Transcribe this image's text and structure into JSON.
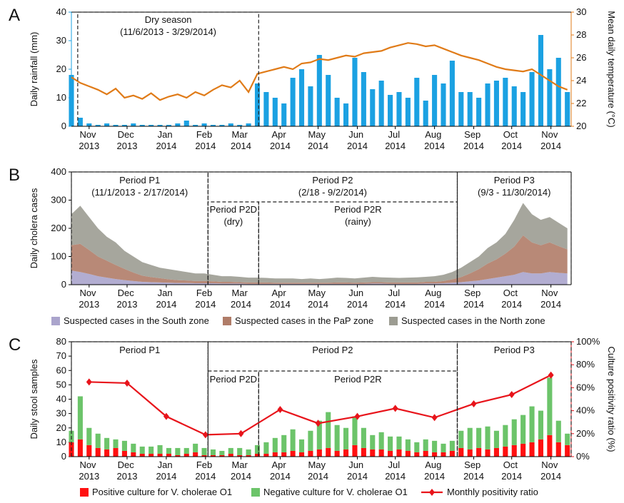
{
  "chart_data": [
    {
      "type": "bar_line",
      "panel": "A",
      "ylabel": "Daily rainfall (mm)",
      "y_axis_color": "#1ba1e2",
      "y2label": "Mean daily temperature (°C)",
      "y2_axis_color": "#e07b18",
      "xlim": [
        0,
        395
      ],
      "ylim": [
        0,
        40
      ],
      "yticks": [
        0,
        10,
        20,
        30,
        40
      ],
      "y2lim": [
        20,
        30
      ],
      "y2ticks": [
        20,
        22,
        24,
        26,
        28,
        30
      ],
      "xticks": [
        {
          "value": 14,
          "label": "Nov 2013"
        },
        {
          "value": 44,
          "label": "Dec 2013"
        },
        {
          "value": 75,
          "label": "Jan 2014"
        },
        {
          "value": 106,
          "label": "Feb 2014"
        },
        {
          "value": 134,
          "label": "Mar 2014"
        },
        {
          "value": 165,
          "label": "Apr 2014"
        },
        {
          "value": 195,
          "label": "May 2014"
        },
        {
          "value": 226,
          "label": "Jun 2014"
        },
        {
          "value": 256,
          "label": "Jul 2014"
        },
        {
          "value": 287,
          "label": "Aug 2014"
        },
        {
          "value": 318,
          "label": "Sep 2014"
        },
        {
          "value": 348,
          "label": "Oct 2014"
        },
        {
          "value": 379,
          "label": "Nov 2014"
        }
      ],
      "x": [
        0,
        7,
        14,
        21,
        28,
        35,
        42,
        49,
        56,
        63,
        70,
        77,
        84,
        91,
        98,
        105,
        112,
        119,
        126,
        133,
        140,
        147,
        154,
        161,
        168,
        175,
        182,
        189,
        196,
        203,
        210,
        217,
        224,
        231,
        238,
        245,
        252,
        259,
        266,
        273,
        280,
        287,
        294,
        301,
        308,
        315,
        322,
        329,
        336,
        343,
        350,
        357,
        364,
        371,
        378,
        385,
        392
      ],
      "series": [
        {
          "name": "Daily rainfall",
          "color": "#1ba1e2",
          "values": [
            18,
            3,
            1,
            0.5,
            1,
            0.5,
            0.5,
            1,
            0.5,
            0.5,
            0.5,
            0.5,
            1,
            2,
            0.5,
            1,
            0.5,
            0.5,
            1,
            0.5,
            1,
            15,
            12,
            10,
            8,
            17,
            20,
            14,
            25,
            18,
            10,
            8,
            24,
            19,
            13,
            16,
            11,
            12,
            10,
            17,
            9,
            18,
            15,
            23,
            12,
            12,
            10,
            15,
            16,
            17,
            14,
            12,
            19,
            32,
            20,
            24,
            12
          ]
        },
        {
          "name": "Mean daily temperature",
          "color": "#e07b18",
          "axis": "y2",
          "values": [
            24.3,
            23.8,
            23.5,
            23.2,
            22.8,
            23.3,
            22.5,
            22.7,
            22.4,
            22.9,
            22.3,
            22.6,
            22.8,
            22.5,
            23.0,
            22.7,
            23.2,
            23.6,
            23.4,
            24.0,
            23.0,
            24.6,
            24.8,
            25.0,
            25.2,
            25.0,
            25.5,
            25.6,
            25.9,
            25.8,
            26.0,
            26.2,
            26.1,
            26.4,
            26.5,
            26.6,
            26.9,
            27.1,
            27.3,
            27.2,
            27.0,
            27.1,
            26.8,
            26.5,
            26.2,
            26.0,
            25.8,
            25.5,
            25.2,
            25.0,
            24.9,
            24.8,
            25.0,
            24.5,
            24.0,
            23.5,
            23.2
          ]
        }
      ],
      "annotations": [
        {
          "lines": [
            "Dry season",
            "(11/6/2013 - 3/29/2014)"
          ]
        }
      ]
    },
    {
      "type": "area",
      "panel": "B",
      "ylabel": "Daily cholera cases",
      "y_axis_color": "#000000",
      "xlim": [
        0,
        395
      ],
      "ylim": [
        0,
        400
      ],
      "yticks": [
        0,
        100,
        200,
        300,
        400
      ],
      "xticks": [
        {
          "value": 14,
          "label": "Nov 2013"
        },
        {
          "value": 44,
          "label": "Dec 2013"
        },
        {
          "value": 75,
          "label": "Jan 2014"
        },
        {
          "value": 106,
          "label": "Feb 2014"
        },
        {
          "value": 134,
          "label": "Mar 2014"
        },
        {
          "value": 165,
          "label": "Apr 2014"
        },
        {
          "value": 195,
          "label": "May 2014"
        },
        {
          "value": 226,
          "label": "Jun 2014"
        },
        {
          "value": 256,
          "label": "Jul 2014"
        },
        {
          "value": 287,
          "label": "Aug 2014"
        },
        {
          "value": 318,
          "label": "Sep 2014"
        },
        {
          "value": 348,
          "label": "Oct 2014"
        },
        {
          "value": 379,
          "label": "Nov 2014"
        }
      ],
      "x": [
        0,
        7,
        14,
        21,
        28,
        35,
        42,
        49,
        56,
        63,
        70,
        77,
        84,
        91,
        98,
        105,
        112,
        119,
        126,
        133,
        140,
        147,
        154,
        161,
        168,
        175,
        182,
        189,
        196,
        203,
        210,
        217,
        224,
        231,
        238,
        245,
        252,
        259,
        266,
        273,
        280,
        287,
        294,
        301,
        308,
        315,
        322,
        329,
        336,
        343,
        350,
        357,
        364,
        371,
        378,
        385,
        392
      ],
      "series": [
        {
          "name": "Suspected cases in the South zone",
          "color": "#aaa4cc",
          "values": [
            50,
            45,
            38,
            30,
            25,
            20,
            16,
            13,
            10,
            9,
            8,
            7,
            6,
            6,
            5,
            5,
            5,
            4,
            4,
            4,
            3,
            3,
            3,
            3,
            3,
            3,
            3,
            3,
            3,
            3,
            3,
            3,
            3,
            3,
            4,
            4,
            3,
            3,
            3,
            3,
            4,
            4,
            5,
            7,
            9,
            12,
            15,
            20,
            25,
            30,
            35,
            45,
            40,
            40,
            45,
            42,
            40
          ]
        },
        {
          "name": "Suspected cases in the PaP zone",
          "color": "#b07c68",
          "values": [
            90,
            100,
            85,
            70,
            60,
            50,
            40,
            30,
            22,
            18,
            15,
            12,
            10,
            9,
            8,
            8,
            7,
            6,
            6,
            5,
            5,
            5,
            5,
            4,
            4,
            4,
            4,
            4,
            4,
            4,
            5,
            5,
            4,
            5,
            5,
            5,
            5,
            5,
            5,
            5,
            6,
            6,
            8,
            12,
            18,
            28,
            40,
            55,
            65,
            80,
            100,
            130,
            110,
            100,
            105,
            95,
            85
          ]
        },
        {
          "name": "Suspected cases in the North zone",
          "color": "#9c9c92",
          "values": [
            110,
            135,
            117,
            100,
            85,
            80,
            64,
            57,
            48,
            43,
            37,
            36,
            34,
            30,
            27,
            27,
            23,
            20,
            20,
            19,
            17,
            17,
            16,
            15,
            15,
            15,
            13,
            15,
            13,
            15,
            17,
            16,
            15,
            17,
            19,
            17,
            17,
            16,
            17,
            18,
            18,
            20,
            22,
            26,
            33,
            40,
            45,
            55,
            60,
            70,
            95,
            115,
            100,
            90,
            90,
            83,
            75
          ]
        }
      ],
      "annotations": [
        {
          "lines": [
            "Period P1",
            "(11/1/2013 - 2/17/2014)"
          ]
        },
        {
          "lines": [
            "Period P2",
            "(2/18 - 9/2/2014)"
          ]
        },
        {
          "lines": [
            "Period P3",
            "(9/3 - 11/30/2014)"
          ]
        },
        {
          "lines": [
            "Period P2D",
            "(dry)"
          ]
        },
        {
          "lines": [
            "Period P2R",
            "(rainy)"
          ]
        }
      ]
    },
    {
      "type": "bar_line",
      "panel": "C",
      "ylabel": "Daily stool samples",
      "y_axis_color": "#000000",
      "y2label": "Culture positivity ratio (%)",
      "y2_axis_color": "#e8141b",
      "xlim": [
        0,
        395
      ],
      "ylim": [
        0,
        80
      ],
      "yticks": [
        0,
        10,
        20,
        30,
        40,
        50,
        60,
        70,
        80
      ],
      "y2lim": [
        0,
        100
      ],
      "y2ticks": [
        {
          "value": 0,
          "label": "0%"
        },
        {
          "value": 20,
          "label": "20%"
        },
        {
          "value": 40,
          "label": "40%"
        },
        {
          "value": 60,
          "label": "60%"
        },
        {
          "value": 80,
          "label": "80%"
        },
        {
          "value": 100,
          "label": "100%"
        }
      ],
      "xticks": [
        {
          "value": 14,
          "label": "Nov 2013"
        },
        {
          "value": 44,
          "label": "Dec 2013"
        },
        {
          "value": 75,
          "label": "Jan 2014"
        },
        {
          "value": 106,
          "label": "Feb 2014"
        },
        {
          "value": 134,
          "label": "Mar 2014"
        },
        {
          "value": 165,
          "label": "Apr 2014"
        },
        {
          "value": 195,
          "label": "May 2014"
        },
        {
          "value": 226,
          "label": "Jun 2014"
        },
        {
          "value": 256,
          "label": "Jul 2014"
        },
        {
          "value": 287,
          "label": "Aug 2014"
        },
        {
          "value": 318,
          "label": "Sep 2014"
        },
        {
          "value": 348,
          "label": "Oct 2014"
        },
        {
          "value": 379,
          "label": "Nov 2014"
        }
      ],
      "x": [
        0,
        7,
        14,
        21,
        28,
        35,
        42,
        49,
        56,
        63,
        70,
        77,
        84,
        91,
        98,
        105,
        112,
        119,
        126,
        133,
        140,
        147,
        154,
        161,
        168,
        175,
        182,
        189,
        196,
        203,
        210,
        217,
        224,
        231,
        238,
        245,
        252,
        259,
        266,
        273,
        280,
        287,
        294,
        301,
        308,
        315,
        322,
        329,
        336,
        343,
        350,
        357,
        364,
        371,
        378,
        385,
        392
      ],
      "series": [
        {
          "name": "Positive culture for V. cholerae O1",
          "color": "#ff1010",
          "values": [
            10,
            12,
            8,
            6,
            5,
            6,
            4,
            3,
            2,
            2,
            2,
            2,
            1,
            2,
            3,
            1,
            1,
            1,
            2,
            1,
            1,
            2,
            2,
            3,
            3,
            4,
            3,
            4,
            5,
            6,
            4,
            5,
            8,
            6,
            5,
            5,
            4,
            5,
            4,
            3,
            4,
            3,
            3,
            4,
            6,
            5,
            6,
            5,
            6,
            7,
            8,
            9,
            10,
            12,
            15,
            10,
            8
          ]
        },
        {
          "name": "Negative culture for V. cholerae O1",
          "color": "#6cc46a",
          "values": [
            8,
            30,
            12,
            10,
            8,
            6,
            7,
            6,
            5,
            5,
            6,
            4,
            5,
            4,
            6,
            5,
            4,
            3,
            4,
            5,
            4,
            6,
            8,
            10,
            12,
            15,
            9,
            14,
            20,
            25,
            18,
            15,
            20,
            14,
            10,
            12,
            10,
            9,
            8,
            7,
            8,
            8,
            6,
            7,
            12,
            15,
            14,
            16,
            12,
            15,
            18,
            20,
            25,
            20,
            40,
            15,
            8
          ]
        },
        {
          "name": "Monthly positivity ratio",
          "color": "#e8141b",
          "axis": "y2",
          "markers": "diamond",
          "x": [
            14,
            44,
            75,
            106,
            134,
            165,
            195,
            226,
            256,
            287,
            318,
            348,
            379
          ],
          "values": [
            65,
            64,
            35,
            19,
            20,
            41,
            29,
            35,
            42,
            34,
            46,
            54,
            71
          ]
        }
      ],
      "annotations": [
        {
          "lines": [
            "Period P1"
          ]
        },
        {
          "lines": [
            "Period P2"
          ]
        },
        {
          "lines": [
            "Period P3"
          ]
        },
        {
          "lines": [
            "Period P2D"
          ]
        },
        {
          "lines": [
            "Period P2R"
          ]
        }
      ]
    }
  ]
}
